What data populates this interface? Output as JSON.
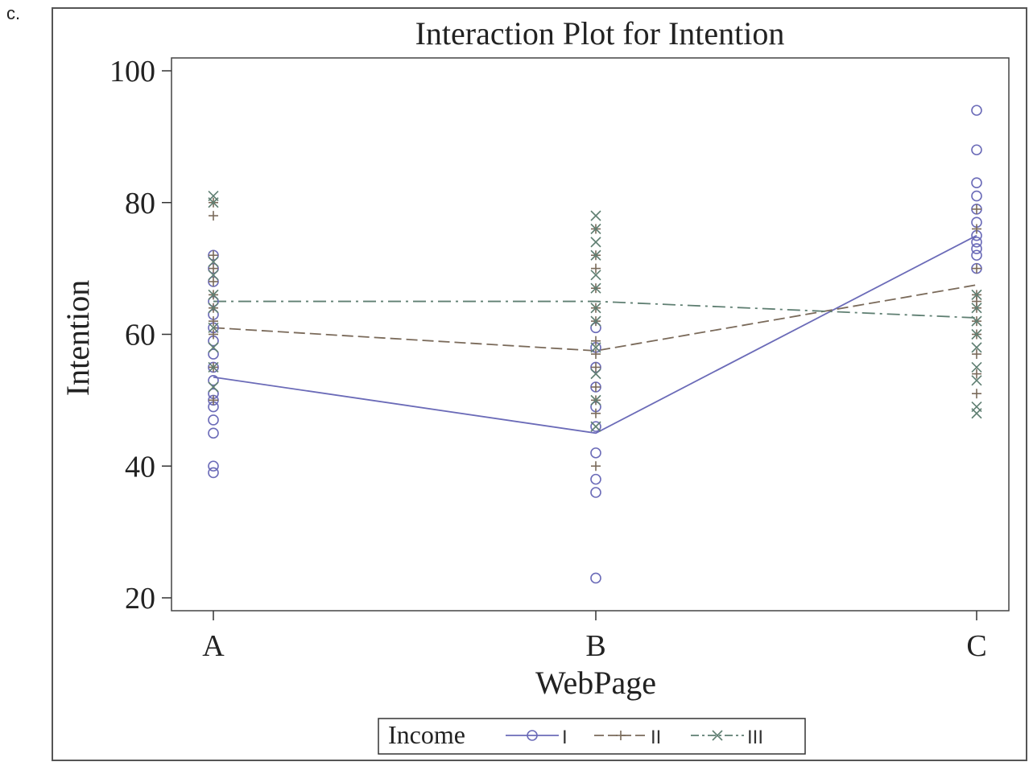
{
  "panel_label": "c.",
  "colors": {
    "income_I": "#6b6bb8",
    "income_II": "#7a6a5a",
    "income_III": "#5f7f72",
    "frame": "#555555",
    "axis": "#333333"
  },
  "chart_data": {
    "type": "scatter",
    "title": "Interaction Plot for Intention",
    "xlabel": "WebPage",
    "ylabel": "Intention",
    "categories": [
      "A",
      "B",
      "C"
    ],
    "ylim": [
      20,
      100
    ],
    "yticks": [
      20,
      40,
      60,
      80,
      100
    ],
    "grid": false,
    "legend": {
      "title": "Income",
      "position": "bottom",
      "entries": [
        "I",
        "II",
        "III"
      ]
    },
    "series": [
      {
        "name": "I",
        "marker": "circle",
        "line": "solid",
        "color_key": "income_I",
        "means": [
          53.5,
          45,
          75
        ],
        "points": [
          [
            39,
            40,
            45,
            47,
            49,
            50,
            51,
            53,
            55,
            57,
            59,
            61,
            63,
            65,
            68,
            70,
            72
          ],
          [
            23,
            36,
            38,
            42,
            46,
            49,
            52,
            55,
            58,
            61
          ],
          [
            70,
            72,
            73,
            74,
            75,
            77,
            79,
            81,
            83,
            88,
            94
          ]
        ]
      },
      {
        "name": "II",
        "marker": "plus",
        "line": "dashed",
        "color_key": "income_II",
        "means": [
          61,
          57.5,
          67.5
        ],
        "points": [
          [
            50,
            55,
            60,
            62,
            64,
            66,
            68,
            70,
            72,
            78,
            80
          ],
          [
            40,
            48,
            50,
            52,
            55,
            57,
            59,
            62,
            64,
            67,
            70,
            72,
            76
          ],
          [
            51,
            54,
            57,
            60,
            62,
            64,
            65,
            66,
            70,
            76,
            79
          ]
        ]
      },
      {
        "name": "III",
        "marker": "x",
        "line": "dashdot",
        "color_key": "income_III",
        "means": [
          65,
          65,
          62.5
        ],
        "points": [
          [
            52,
            55,
            58,
            61,
            64,
            66,
            69,
            71,
            80,
            81
          ],
          [
            46,
            50,
            54,
            58,
            62,
            64,
            67,
            69,
            72,
            74,
            76,
            78
          ],
          [
            48,
            49,
            53,
            55,
            58,
            60,
            62,
            64,
            66
          ]
        ]
      }
    ]
  }
}
